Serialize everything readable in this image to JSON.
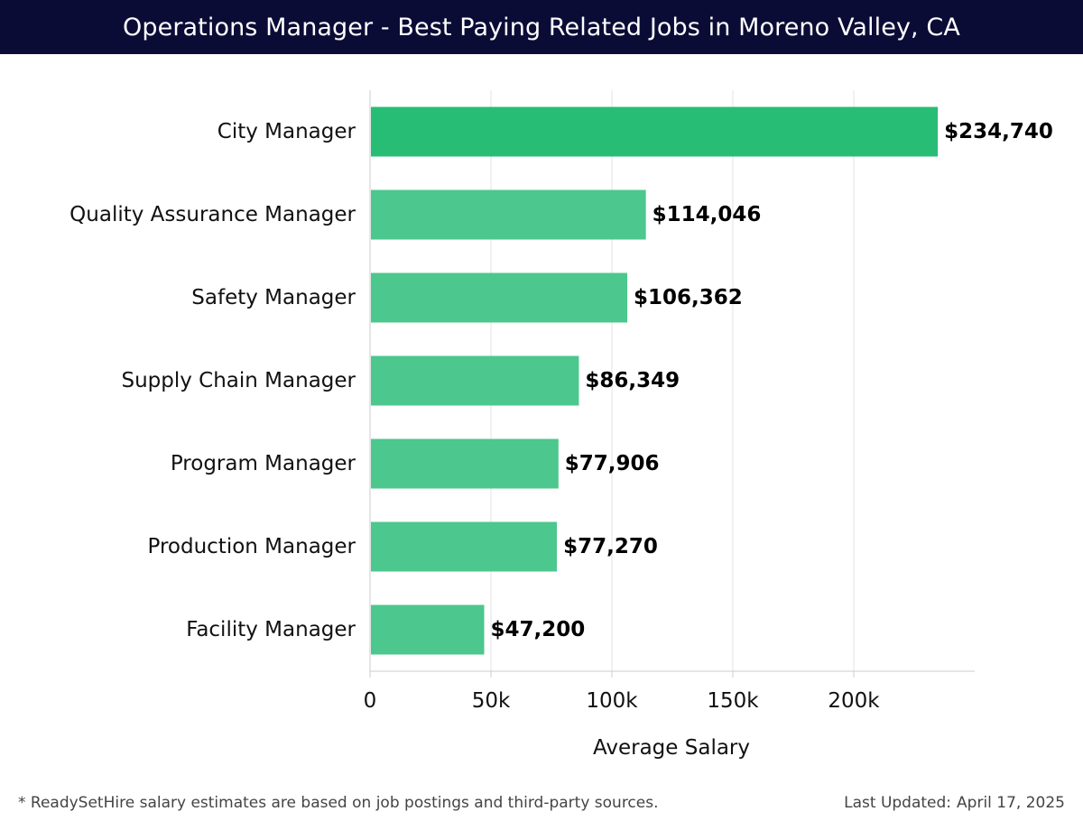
{
  "header": {
    "title": "Operations Manager - Best Paying Related Jobs in Moreno Valley, CA"
  },
  "chart_data": {
    "type": "bar",
    "orientation": "horizontal",
    "title": "Operations Manager - Best Paying Related Jobs in Moreno Valley, CA",
    "xlabel": "Average Salary",
    "ylabel": "",
    "xlim": [
      0,
      250000
    ],
    "x_ticks": [
      0,
      50000,
      100000,
      150000,
      200000
    ],
    "x_tick_labels": [
      "0",
      "50k",
      "100k",
      "150k",
      "200k"
    ],
    "grid": "vertical",
    "categories": [
      "City Manager",
      "Quality Assurance Manager",
      "Safety Manager",
      "Supply Chain Manager",
      "Program Manager",
      "Production Manager",
      "Facility Manager"
    ],
    "values": [
      234740,
      114046,
      106362,
      86349,
      77906,
      77270,
      47200
    ],
    "value_labels": [
      "$234,740",
      "$114,046",
      "$106,362",
      "$86,349",
      "$77,906",
      "$77,270",
      "$47,200"
    ],
    "colors": {
      "highlight_bar": "#27bd74",
      "bar": "#4cc78d",
      "gridline": "#e3e3e3",
      "axis": "#cccccc"
    }
  },
  "footer": {
    "note": "* ReadySetHire salary estimates are based on job postings and third-party sources.",
    "updated_label": "Last Updated:",
    "updated_date": "April 17, 2025"
  }
}
